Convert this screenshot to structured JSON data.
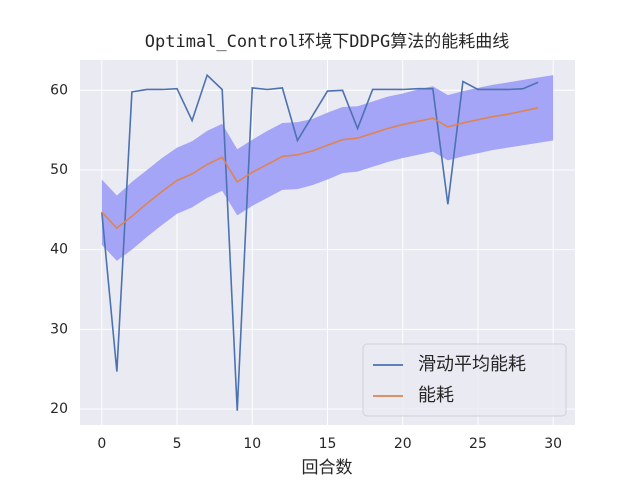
{
  "chart_data": {
    "type": "line",
    "title": "Optimal_Control环境下DDPG算法的能耗曲线",
    "xlabel": "回合数",
    "x": [
      0,
      1,
      2,
      3,
      4,
      5,
      6,
      7,
      8,
      9,
      10,
      11,
      12,
      13,
      14,
      15,
      16,
      17,
      18,
      19,
      20,
      21,
      22,
      23,
      24,
      25,
      26,
      27,
      28,
      29
    ],
    "series": [
      {
        "name": "滑动平均能耗",
        "color": "#4c72b0",
        "values": [
          44.7,
          24.7,
          59.8,
          60.1,
          60.1,
          60.2,
          56.2,
          61.9,
          60.1,
          19.8,
          60.3,
          60.1,
          60.3,
          53.7,
          56.8,
          59.9,
          60.0,
          55.2,
          60.1,
          60.1,
          60.1,
          60.2,
          60.2,
          45.7,
          61.1,
          60.1,
          60.1,
          60.1,
          60.2,
          61.0
        ]
      },
      {
        "name": "能耗",
        "color": "#dd8452",
        "values": [
          44.7,
          42.7,
          44.2,
          45.8,
          47.3,
          48.7,
          49.5,
          50.7,
          51.6,
          48.5,
          49.7,
          50.7,
          51.7,
          51.9,
          52.4,
          53.1,
          53.8,
          54.0,
          54.6,
          55.2,
          55.7,
          56.1,
          56.5,
          55.4,
          55.9,
          56.3,
          56.7,
          57.0,
          57.4,
          57.8
        ]
      }
    ],
    "band": {
      "color": "#a5a5f7",
      "x": [
        0,
        1,
        2,
        3,
        4,
        5,
        6,
        7,
        8,
        9,
        10,
        11,
        12,
        13,
        14,
        15,
        16,
        17,
        18,
        19,
        20,
        21,
        22,
        23,
        24,
        25,
        26,
        27,
        28,
        29,
        30
      ],
      "upper": [
        48.8,
        46.8,
        48.5,
        50.0,
        51.5,
        52.8,
        53.6,
        54.9,
        55.8,
        52.6,
        53.8,
        54.9,
        55.9,
        56.0,
        56.4,
        57.2,
        57.9,
        58.0,
        58.6,
        59.2,
        59.6,
        60.1,
        60.5,
        59.4,
        59.9,
        60.3,
        60.7,
        61.0,
        61.3,
        61.6,
        61.9
      ],
      "lower": [
        40.6,
        38.6,
        40.0,
        41.6,
        43.1,
        44.5,
        45.3,
        46.5,
        47.4,
        44.3,
        45.5,
        46.5,
        47.5,
        47.6,
        48.1,
        48.8,
        49.6,
        49.8,
        50.4,
        51.0,
        51.5,
        51.9,
        52.3,
        51.2,
        51.7,
        52.1,
        52.5,
        52.8,
        53.1,
        53.4,
        53.7
      ]
    },
    "xlim": [
      -1.45,
      31.45
    ],
    "ylim": [
      18,
      63.8
    ],
    "xticks": [
      0,
      5,
      10,
      15,
      20,
      25,
      30
    ],
    "yticks": [
      20,
      30,
      40,
      50,
      60
    ],
    "grid": true,
    "legend": "lower right"
  }
}
